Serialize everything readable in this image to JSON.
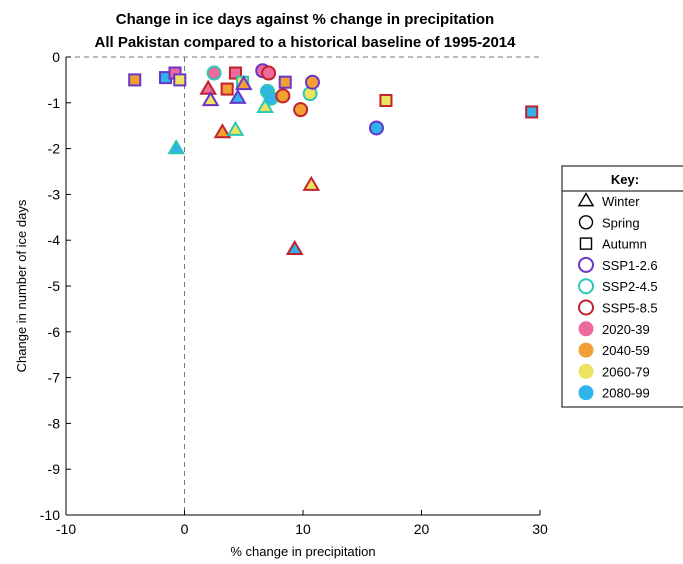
{
  "chart_data": {
    "type": "scatter",
    "title": "Change in ice days against % change in precipitation",
    "subtitle": "All Pakistan compared to a historical baseline of 1995-2014",
    "xlabel": "% change in precipitation",
    "ylabel": "Change in number of ice days",
    "xlim": [
      -10,
      30
    ],
    "ylim": [
      -10,
      0
    ],
    "x_ticks": [
      -10,
      0,
      10,
      20,
      30
    ],
    "y_ticks": [
      0,
      -1,
      -2,
      -3,
      -4,
      -5,
      -6,
      -7,
      -8,
      -9,
      -10
    ],
    "grid": false,
    "reference_lines": {
      "vertical_x": 0,
      "horizontal_y": 0,
      "style": "dashed"
    },
    "legend": {
      "title": "Key:",
      "placement": "right",
      "shape_entries": [
        {
          "label": "Winter",
          "shape": "triangle"
        },
        {
          "label": "Spring",
          "shape": "circle"
        },
        {
          "label": "Autumn",
          "shape": "square"
        }
      ],
      "scenario_entries": [
        {
          "label": "SSP1-2.6",
          "edge_color": "#6a35c9"
        },
        {
          "label": "SSP2-4.5",
          "edge_color": "#2ec7b5"
        },
        {
          "label": "SSP5-8.5",
          "edge_color": "#c0232d"
        }
      ],
      "period_entries": [
        {
          "label": "2020-39",
          "fill_color": "#ee6a9c"
        },
        {
          "label": "2040-59",
          "fill_color": "#f2a033"
        },
        {
          "label": "2060-79",
          "fill_color": "#ede35e"
        },
        {
          "label": "2080-99",
          "fill_color": "#2eb3ea"
        }
      ]
    },
    "points": [
      {
        "x": -4.2,
        "y": -0.5,
        "season": "Autumn",
        "scenario": "SSP1-2.6",
        "period": "2040-59"
      },
      {
        "x": -1.6,
        "y": -0.45,
        "season": "Autumn",
        "scenario": "SSP1-2.6",
        "period": "2080-99"
      },
      {
        "x": -0.8,
        "y": -0.35,
        "season": "Autumn",
        "scenario": "SSP1-2.6",
        "period": "2020-39"
      },
      {
        "x": -0.4,
        "y": -0.5,
        "season": "Autumn",
        "scenario": "SSP1-2.6",
        "period": "2060-79"
      },
      {
        "x": -0.7,
        "y": -2.0,
        "season": "Winter",
        "scenario": "SSP2-4.5",
        "period": "2080-99"
      },
      {
        "x": 2.0,
        "y": -0.7,
        "season": "Winter",
        "scenario": "SSP5-8.5",
        "period": "2020-39"
      },
      {
        "x": 2.2,
        "y": -0.95,
        "season": "Winter",
        "scenario": "SSP1-2.6",
        "period": "2060-79"
      },
      {
        "x": 2.5,
        "y": -0.35,
        "season": "Spring",
        "scenario": "SSP2-4.5",
        "period": "2020-39"
      },
      {
        "x": 3.2,
        "y": -1.65,
        "season": "Winter",
        "scenario": "SSP5-8.5",
        "period": "2040-59"
      },
      {
        "x": 3.6,
        "y": -0.7,
        "season": "Autumn",
        "scenario": "SSP5-8.5",
        "period": "2040-59"
      },
      {
        "x": 4.3,
        "y": -1.6,
        "season": "Winter",
        "scenario": "SSP2-4.5",
        "period": "2060-79"
      },
      {
        "x": 4.3,
        "y": -0.35,
        "season": "Autumn",
        "scenario": "SSP5-8.5",
        "period": "2020-39"
      },
      {
        "x": 4.5,
        "y": -0.9,
        "season": "Winter",
        "scenario": "SSP1-2.6",
        "period": "2080-99"
      },
      {
        "x": 4.9,
        "y": -0.55,
        "season": "Autumn",
        "scenario": "SSP2-4.5",
        "period": "2060-79"
      },
      {
        "x": 5.0,
        "y": -0.6,
        "season": "Winter",
        "scenario": "SSP1-2.6",
        "period": "2040-59"
      },
      {
        "x": 6.6,
        "y": -0.3,
        "season": "Spring",
        "scenario": "SSP1-2.6",
        "period": "2020-39"
      },
      {
        "x": 6.8,
        "y": -1.1,
        "season": "Winter",
        "scenario": "SSP2-4.5",
        "period": "2060-79"
      },
      {
        "x": 7.0,
        "y": -0.75,
        "season": "Spring",
        "scenario": "SSP2-4.5",
        "period": "2080-99"
      },
      {
        "x": 7.1,
        "y": -0.35,
        "season": "Spring",
        "scenario": "SSP5-8.5",
        "period": "2020-39"
      },
      {
        "x": 7.3,
        "y": -0.9,
        "season": "Spring",
        "scenario": "SSP2-4.5",
        "period": "2080-99"
      },
      {
        "x": 8.3,
        "y": -0.85,
        "season": "Spring",
        "scenario": "SSP5-8.5",
        "period": "2040-59"
      },
      {
        "x": 8.5,
        "y": -0.55,
        "season": "Autumn",
        "scenario": "SSP1-2.6",
        "period": "2040-59"
      },
      {
        "x": 9.3,
        "y": -4.2,
        "season": "Winter",
        "scenario": "SSP5-8.5",
        "period": "2080-99"
      },
      {
        "x": 9.8,
        "y": -1.15,
        "season": "Spring",
        "scenario": "SSP5-8.5",
        "period": "2040-59"
      },
      {
        "x": 10.6,
        "y": -0.8,
        "season": "Spring",
        "scenario": "SSP2-4.5",
        "period": "2060-79"
      },
      {
        "x": 10.8,
        "y": -0.55,
        "season": "Spring",
        "scenario": "SSP1-2.6",
        "period": "2040-59"
      },
      {
        "x": 10.7,
        "y": -2.8,
        "season": "Winter",
        "scenario": "SSP5-8.5",
        "period": "2060-79"
      },
      {
        "x": 16.2,
        "y": -1.55,
        "season": "Spring",
        "scenario": "SSP1-2.6",
        "period": "2080-99"
      },
      {
        "x": 17.0,
        "y": -0.95,
        "season": "Autumn",
        "scenario": "SSP5-8.5",
        "period": "2060-79"
      },
      {
        "x": 29.3,
        "y": -1.2,
        "season": "Autumn",
        "scenario": "SSP5-8.5",
        "period": "2080-99"
      }
    ]
  }
}
